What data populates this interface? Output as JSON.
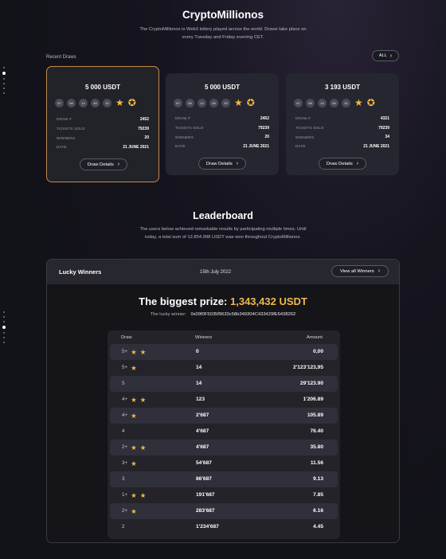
{
  "header": {
    "title": "CryptoMillionos",
    "description": "The CryptoMillionos is Web3 lottery played across the world. Draws take place on every Tuesday and Friday evening CET."
  },
  "recent_draws": {
    "label": "Recent Draws",
    "all_label": "ALL",
    "cards": [
      {
        "amount": "5 000 USDT",
        "balls": [
          "67",
          "58",
          "14",
          "45",
          "32"
        ],
        "stars": 2,
        "rows": [
          {
            "key": "DRAW #",
            "value": "2452"
          },
          {
            "key": "TICKETS SOLD",
            "value": "79239"
          },
          {
            "key": "WINNERS",
            "value": "20"
          },
          {
            "key": "DATE",
            "value": "21 JUNE 2021"
          }
        ],
        "button": "Draw Details"
      },
      {
        "amount": "5 000 USDT",
        "balls": [
          "67",
          "58",
          "14",
          "45",
          "33"
        ],
        "stars": 2,
        "rows": [
          {
            "key": "DRAW #",
            "value": "2452"
          },
          {
            "key": "TICKETS SOLD",
            "value": "79239"
          },
          {
            "key": "WINNERS",
            "value": "20"
          },
          {
            "key": "DATE",
            "value": "21 JUNE 2021"
          }
        ],
        "button": "Draw Details"
      },
      {
        "amount": "3 193 USDT",
        "balls": [
          "67",
          "58",
          "14",
          "45",
          "32"
        ],
        "stars": 2,
        "rows": [
          {
            "key": "DRAW #",
            "value": "4321"
          },
          {
            "key": "TICKETS SOLD",
            "value": "79239"
          },
          {
            "key": "WINNERS",
            "value": "34"
          },
          {
            "key": "DATE",
            "value": "21 JUNE 2021"
          }
        ],
        "button": "Draw Details"
      }
    ]
  },
  "leaderboard": {
    "title": "Leaderboard",
    "description": "The users below achieved remarkable results by participating multiple times. Until today, a total sum of 12.854.998 USDT was won throughout CryptoMillionos.",
    "panel": {
      "title": "Lucky Winners",
      "date": "15th July 2022",
      "view_all": "View all Winners",
      "prize_label": "The biggest prize:",
      "prize_amount": "1,343,432 USDT",
      "winner_label": "The lucky winner:",
      "winner_address": "0x09f0F5035f9633c58b349304C433429fE6438262"
    },
    "table": {
      "headers": [
        "Draw",
        "Winners",
        "Amount"
      ],
      "rows": [
        {
          "draw": "5+",
          "stars": 2,
          "winners": "0",
          "amount": "0,00"
        },
        {
          "draw": "5+",
          "stars": 1,
          "winners": "14",
          "amount": "2'123'123,95"
        },
        {
          "draw": "5",
          "stars": 0,
          "winners": "14",
          "amount": "29'123.90"
        },
        {
          "draw": "4+",
          "stars": 2,
          "winners": "123",
          "amount": "1'206.89"
        },
        {
          "draw": "4+",
          "stars": 1,
          "winners": "2'687",
          "amount": "105.89"
        },
        {
          "draw": "4",
          "stars": 0,
          "winners": "4'687",
          "amount": "76.40"
        },
        {
          "draw": "2+",
          "stars": 2,
          "winners": "4'687",
          "amount": "35.80"
        },
        {
          "draw": "3+",
          "stars": 1,
          "winners": "54'687",
          "amount": "11.56"
        },
        {
          "draw": "3",
          "stars": 0,
          "winners": "86'687",
          "amount": "9.13"
        },
        {
          "draw": "1+",
          "stars": 2,
          "winners": "191'687",
          "amount": "7.85"
        },
        {
          "draw": "2+",
          "stars": 1,
          "winners": "283'687",
          "amount": "6.16"
        },
        {
          "draw": "2",
          "stars": 0,
          "winners": "1'234'687",
          "amount": "4.45"
        }
      ]
    }
  },
  "colors": {
    "accent": "#f1b84a",
    "selected_border": "#c38a4c",
    "card_bg": "#262630"
  }
}
